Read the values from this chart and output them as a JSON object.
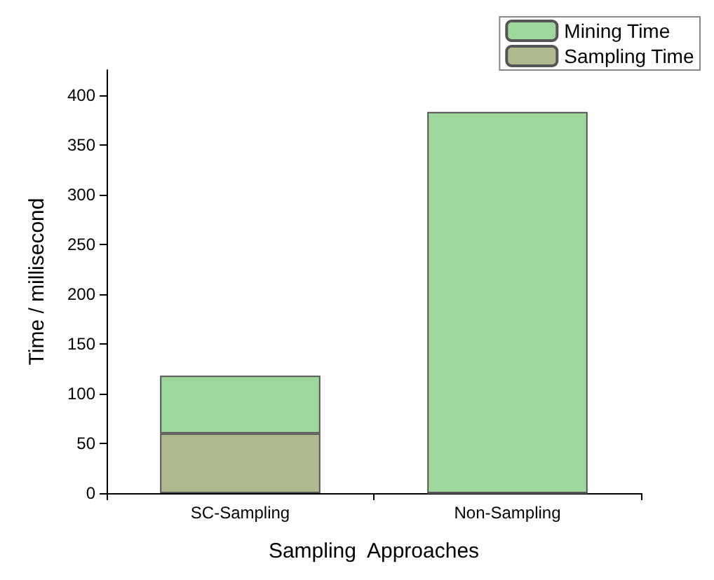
{
  "chart_data": {
    "type": "bar",
    "stacked": true,
    "xlabel": "Sampling  Approaches",
    "ylabel": "Time / millisecond",
    "categories": [
      "SC-Sampling",
      "Non-Sampling"
    ],
    "series": [
      {
        "name": "Sampling Time",
        "color": "#b0b88f",
        "values": [
          60,
          0
        ]
      },
      {
        "name": "Mining Time",
        "color": "#9dd79c",
        "values": [
          58,
          383
        ]
      }
    ],
    "ylim": [
      0,
      425
    ],
    "yticks": [
      0,
      50,
      100,
      150,
      200,
      250,
      300,
      350,
      400
    ],
    "grid": false,
    "legend": "top right"
  }
}
